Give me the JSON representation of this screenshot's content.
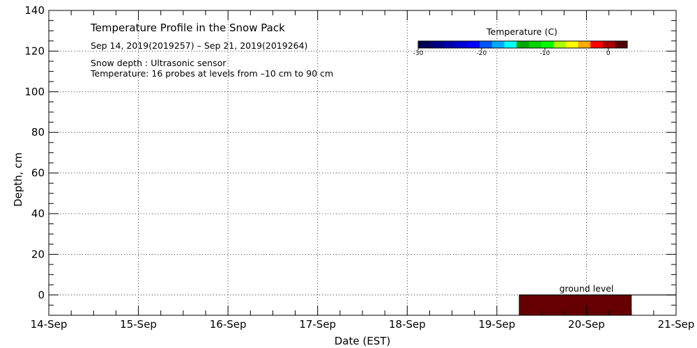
{
  "chart_data": {
    "type": "heatmap",
    "title": "Temperature Profile in the Snow Pack",
    "subtitle": "Sep 14, 2019(2019257) – Sep 21, 2019(2019264)",
    "notes": [
      "Snow depth : Ultrasonic sensor",
      "Temperature: 16 probes at levels from –10 cm to 90 cm"
    ],
    "xlabel": "Date (EST)",
    "ylabel": "Depth, cm",
    "x_ticks": [
      "14-Sep",
      "15-Sep",
      "16-Sep",
      "17-Sep",
      "18-Sep",
      "19-Sep",
      "20-Sep",
      "21-Sep"
    ],
    "xlim": [
      "2019-09-14",
      "2019-09-21"
    ],
    "ylim": [
      -10,
      140
    ],
    "y_ticks": [
      0,
      20,
      40,
      60,
      80,
      100,
      120,
      140
    ],
    "grid": true,
    "colorbar": {
      "title": "Temperature (C)",
      "range": [
        -30,
        3
      ],
      "ticks": [
        -30,
        -20,
        -10,
        0
      ],
      "colors": [
        "#000055",
        "#00007f",
        "#0000aa",
        "#0000d4",
        "#0000ff",
        "#0055ff",
        "#00aaff",
        "#00ffff",
        "#00aa00",
        "#00d400",
        "#00ff00",
        "#aaff00",
        "#ffff00",
        "#ffaa00",
        "#ff0000",
        "#aa0000",
        "#550000"
      ]
    },
    "ground_level": {
      "label": "ground level",
      "depth": 0,
      "start": "2019-09-19 06:00",
      "end": "2019-09-21 00:00"
    },
    "temperature_band": {
      "start": "2019-09-19 06:00",
      "end": "2019-09-20 12:00",
      "depth_from": -10,
      "depth_to": 0,
      "temperature": 3,
      "color": "#660000"
    },
    "snow_depth": []
  }
}
